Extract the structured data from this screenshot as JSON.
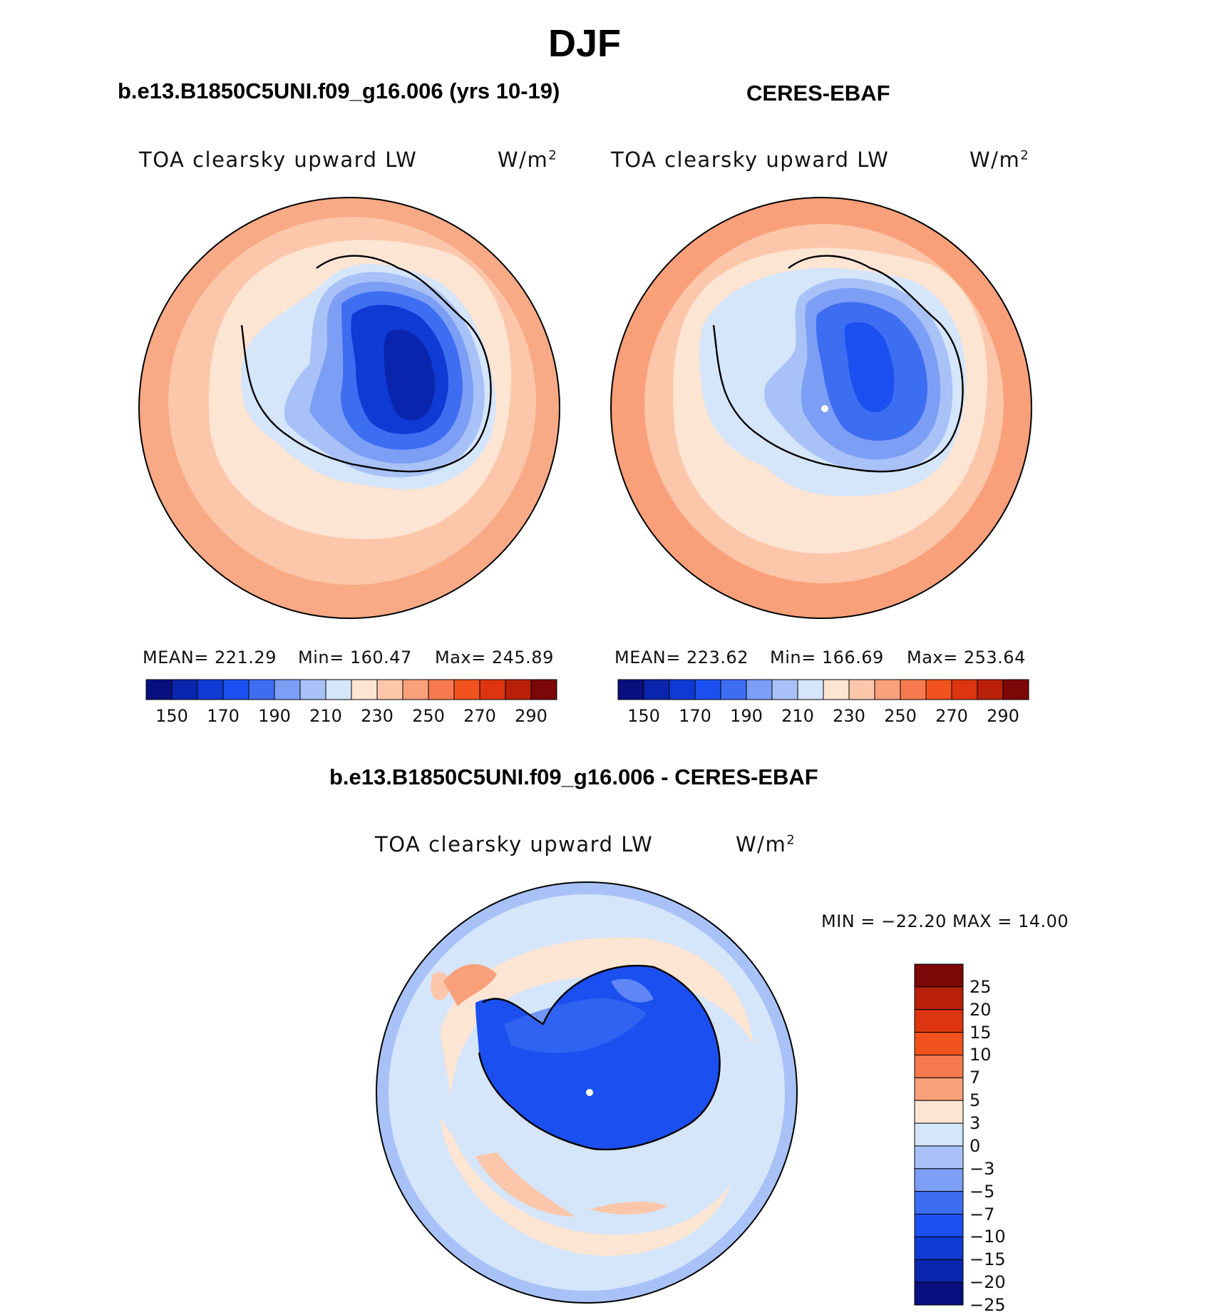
{
  "title": "DJF",
  "panels": [
    {
      "case_title": "b.e13.B1850C5UNI.f09_g16.006 (yrs 10-19)",
      "variable": "TOA clearsky upward LW",
      "units": "W/m",
      "units_sup": "2",
      "mean_label": "MEAN= 221.29",
      "min_label": "Min= 160.47",
      "max_label": "Max= 245.89"
    },
    {
      "case_title": "CERES-EBAF",
      "variable": "TOA clearsky upward LW",
      "units": "W/m",
      "units_sup": "2",
      "mean_label": "MEAN= 223.62",
      "min_label": "Min= 166.69",
      "max_label": "Max= 253.64"
    }
  ],
  "diff_panel": {
    "title": "b.e13.B1850C5UNI.f09_g16.006 - CERES-EBAF",
    "variable": "TOA clearsky upward LW",
    "units": "W/m",
    "units_sup": "2",
    "minmax_label": "MIN = −22.20 MAX =   14.00"
  },
  "colorbar_abs": {
    "levels": [
      "150",
      "170",
      "190",
      "210",
      "230",
      "250",
      "270",
      "290"
    ],
    "colors": [
      "#08107f",
      "#0a25ad",
      "#0f3ad4",
      "#1b4ff0",
      "#3d6ef2",
      "#7c9ef5",
      "#a8c2f7",
      "#d5e5fa",
      "#fde5d3",
      "#fcc6aa",
      "#f9a07a",
      "#f67a4e",
      "#f2521e",
      "#dd3510",
      "#b8200a",
      "#7d0606"
    ]
  },
  "colorbar_diff": {
    "levels": [
      "25",
      "20",
      "15",
      "10",
      "7",
      "5",
      "3",
      "0",
      "−3",
      "−5",
      "−7",
      "−10",
      "−15",
      "−20",
      "−25"
    ],
    "colors": [
      "#7d0606",
      "#b8200a",
      "#dd3510",
      "#f2521e",
      "#f67a4e",
      "#f9a07a",
      "#fde5d3",
      "#d5e5fa",
      "#a8c2f7",
      "#7c9ef5",
      "#3d6ef2",
      "#1b4ff0",
      "#0f3ad4",
      "#0a25ad",
      "#08107f"
    ]
  }
}
